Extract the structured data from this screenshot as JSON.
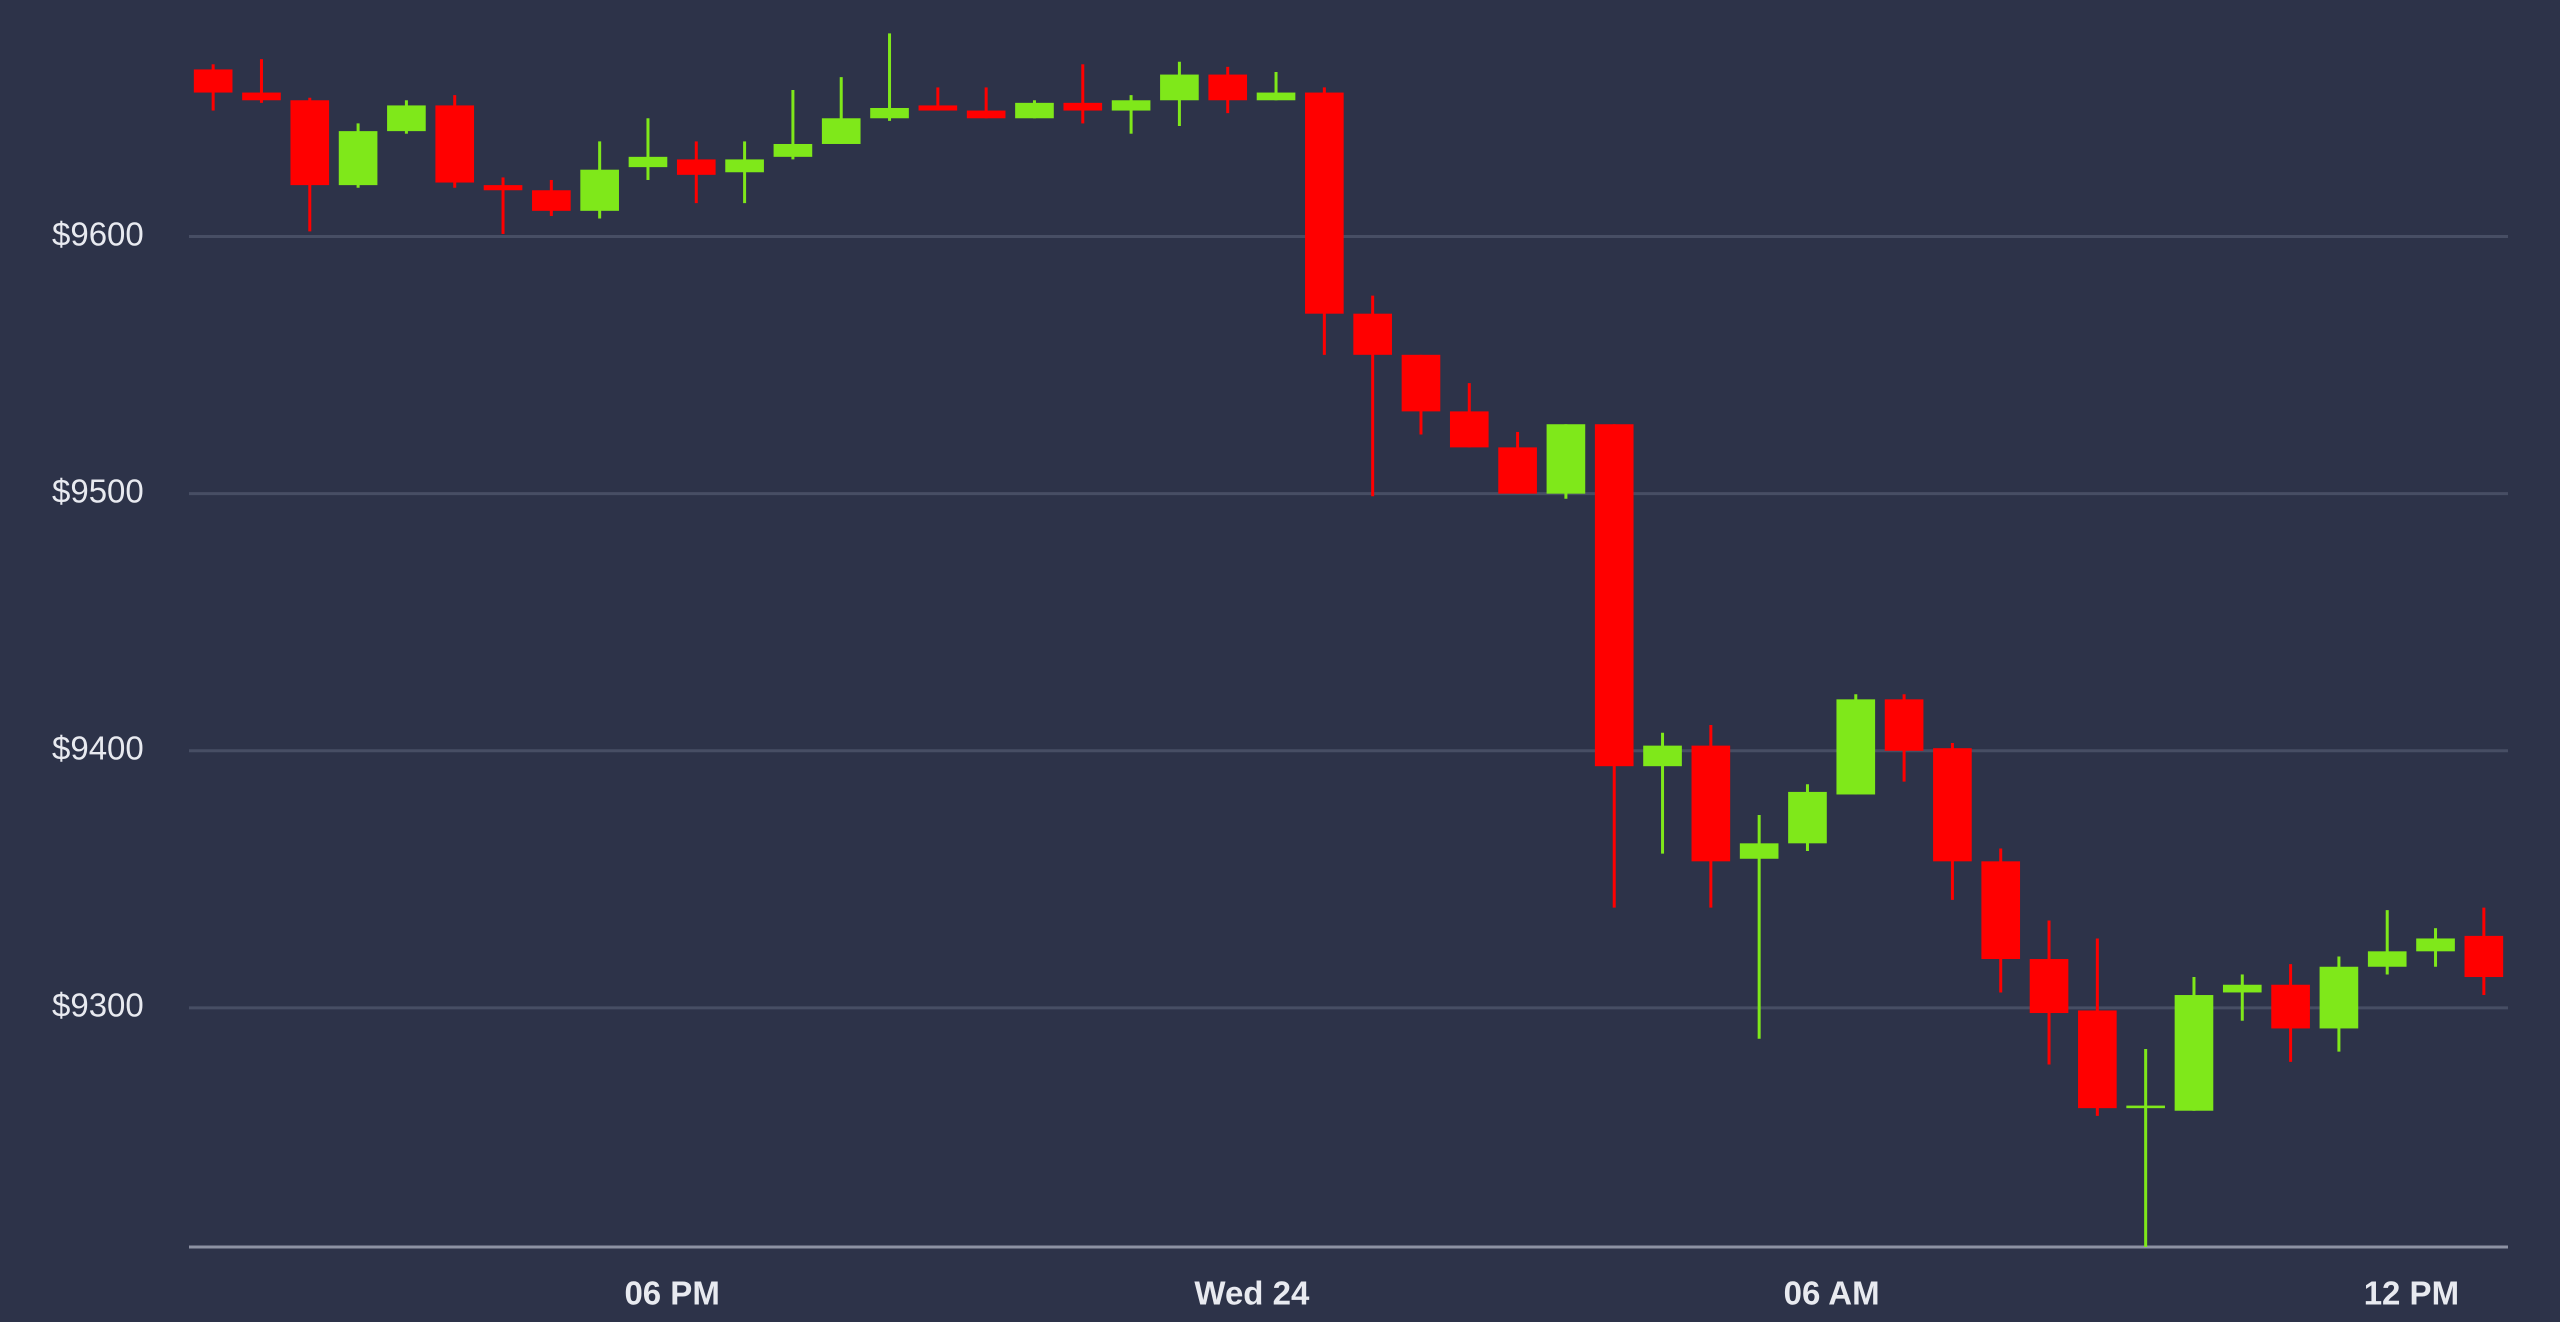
{
  "chart_data": {
    "type": "candlestick",
    "x": [
      13.25,
      13.75,
      14.25,
      14.75,
      15.25,
      15.75,
      16.25,
      16.75,
      17.25,
      17.75,
      18.25,
      18.75,
      19.25,
      19.75,
      20.25,
      20.75,
      21.25,
      21.75,
      22.25,
      22.75,
      23.25,
      23.75,
      24.25,
      24.75,
      25.25,
      25.75,
      26.25,
      26.75,
      27.25,
      27.75,
      28.25,
      28.75,
      29.25,
      29.75,
      30.25,
      30.75,
      31.25,
      31.75,
      32.25,
      32.75,
      33.25,
      33.75,
      34.25,
      34.75,
      35.25,
      35.75,
      36.25,
      36.75
    ],
    "open": [
      9665,
      9656,
      9653,
      9620,
      9641,
      9651,
      9620,
      9618,
      9610,
      9627,
      9630,
      9625,
      9631,
      9636,
      9646,
      9651,
      9649,
      9646,
      9652,
      9649,
      9653,
      9663,
      9653,
      9656,
      9570,
      9554,
      9532,
      9518,
      9500,
      9527,
      9394,
      9402,
      9358,
      9364,
      9383,
      9420,
      9401,
      9357,
      9319,
      9299,
      9261,
      9260,
      9306,
      9309,
      9292,
      9316,
      9322,
      9328
    ],
    "high": [
      9667,
      9669,
      9654,
      9644,
      9653,
      9655,
      9623,
      9622,
      9637,
      9646,
      9637,
      9637,
      9657,
      9662,
      9679,
      9658,
      9658,
      9653,
      9667,
      9655,
      9668,
      9666,
      9664,
      9658,
      9577,
      9554,
      9543,
      9524,
      9527,
      9527,
      9407,
      9410,
      9375,
      9387,
      9422,
      9422,
      9403,
      9362,
      9334,
      9327,
      9284,
      9312,
      9313,
      9317,
      9320,
      9338,
      9331,
      9339
    ],
    "low": [
      9649,
      9652,
      9602,
      9619,
      9640,
      9619,
      9601,
      9608,
      9607,
      9622,
      9613,
      9613,
      9630,
      9636,
      9645,
      9649,
      9646,
      9646,
      9644,
      9640,
      9643,
      9648,
      9653,
      9554,
      9499,
      9523,
      9518,
      9500,
      9498,
      9339,
      9360,
      9339,
      9288,
      9361,
      9383,
      9388,
      9342,
      9306,
      9278,
      9258,
      9207,
      9260,
      9295,
      9279,
      9283,
      9313,
      9316,
      9305
    ],
    "close": [
      9656,
      9653,
      9620,
      9641,
      9651,
      9621,
      9618,
      9610,
      9626,
      9631,
      9624,
      9630,
      9636,
      9646,
      9650,
      9649,
      9646,
      9652,
      9649,
      9653,
      9663,
      9653,
      9656,
      9570,
      9554,
      9532,
      9518,
      9500,
      9527,
      9394,
      9402,
      9357,
      9364,
      9384,
      9420,
      9400,
      9357,
      9319,
      9298,
      9261,
      9262,
      9305,
      9309,
      9292,
      9316,
      9322,
      9327,
      9312
    ],
    "up_color": "#7fe81a",
    "down_color": "#ff0000",
    "xlim": [
      13,
      37
    ],
    "xticks": [
      {
        "value": 18,
        "label": "06 PM"
      },
      {
        "value": 24,
        "label": "Wed 24"
      },
      {
        "value": 30,
        "label": "06 AM"
      },
      {
        "value": 36,
        "label": "12 PM"
      }
    ],
    "ylim": [
      9207,
      9692
    ],
    "yticks": [
      {
        "value": 9300,
        "label": "$9300"
      },
      {
        "value": 9400,
        "label": "$9400"
      },
      {
        "value": 9500,
        "label": "$9500"
      },
      {
        "value": 9600,
        "label": "$9600"
      }
    ],
    "grid": true
  }
}
